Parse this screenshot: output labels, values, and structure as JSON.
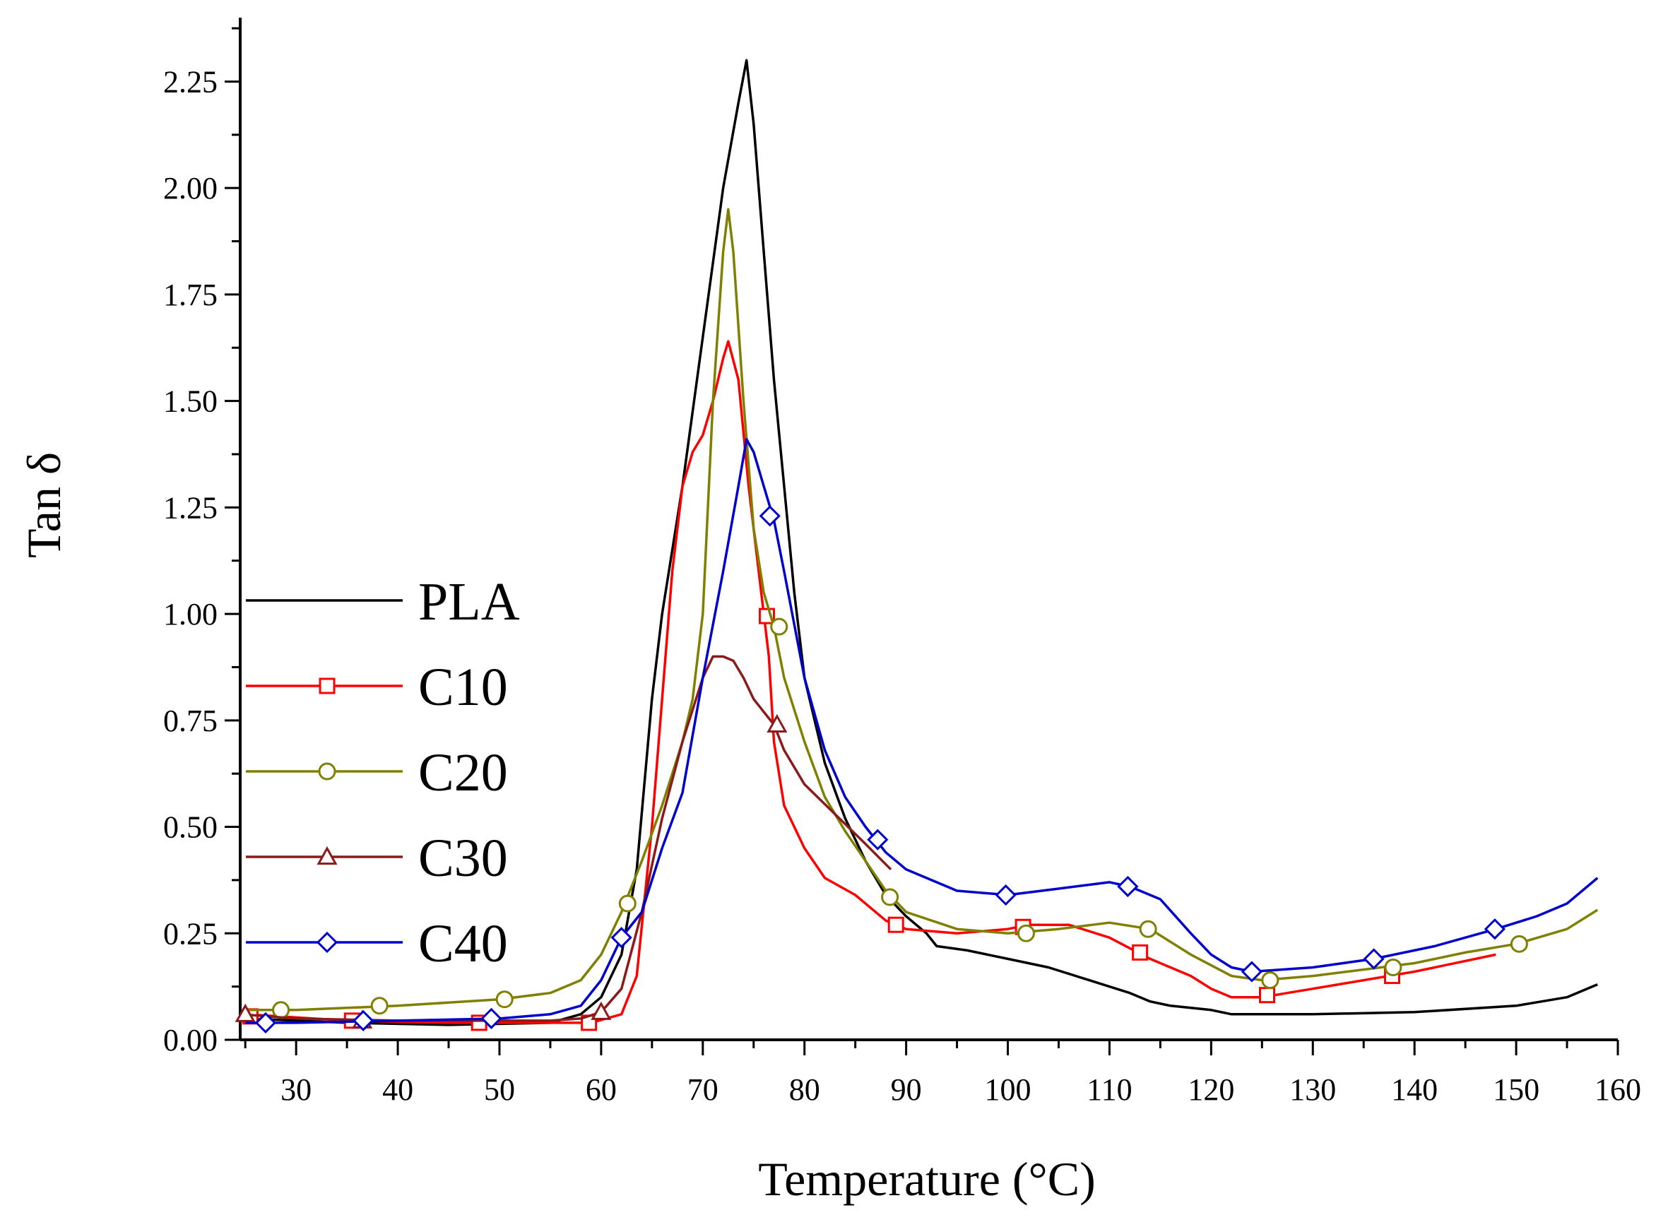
{
  "chart_data": {
    "type": "line",
    "title": "",
    "xlabel": "Temperature (°C)",
    "ylabel": "Tan δ",
    "xlim": [
      24.5,
      160
    ],
    "ylim": [
      0,
      2.4
    ],
    "xticks": [
      30,
      40,
      50,
      60,
      70,
      80,
      90,
      100,
      110,
      120,
      130,
      140,
      150,
      160
    ],
    "yticks": [
      0.0,
      0.25,
      0.5,
      0.75,
      1.0,
      1.25,
      1.5,
      1.75,
      2.0,
      2.25
    ],
    "xtick_labels": [
      "30",
      "40",
      "50",
      "60",
      "70",
      "80",
      "90",
      "100",
      "110",
      "120",
      "130",
      "140",
      "150",
      "160"
    ],
    "ytick_labels": [
      "0.00",
      "0.25",
      "0.50",
      "0.75",
      "1.00",
      "1.25",
      "1.50",
      "1.75",
      "2.00",
      "2.25"
    ],
    "grid": false,
    "legend_position": "left",
    "series": [
      {
        "name": "PLA",
        "color": "#000000",
        "marker": "none",
        "points": [
          [
            25,
            0.05
          ],
          [
            35,
            0.04
          ],
          [
            45,
            0.035
          ],
          [
            55,
            0.04
          ],
          [
            58,
            0.06
          ],
          [
            60,
            0.1
          ],
          [
            62,
            0.2
          ],
          [
            63.5,
            0.4
          ],
          [
            65,
            0.8
          ],
          [
            66,
            1.0
          ],
          [
            68,
            1.3
          ],
          [
            70,
            1.65
          ],
          [
            72,
            2.0
          ],
          [
            73.5,
            2.2
          ],
          [
            74.3,
            2.3
          ],
          [
            75,
            2.15
          ],
          [
            76,
            1.85
          ],
          [
            77,
            1.55
          ],
          [
            78,
            1.3
          ],
          [
            79,
            1.05
          ],
          [
            80,
            0.85
          ],
          [
            82,
            0.65
          ],
          [
            84,
            0.52
          ],
          [
            86,
            0.42
          ],
          [
            88,
            0.34
          ],
          [
            90,
            0.29
          ],
          [
            92,
            0.25
          ],
          [
            93,
            0.22
          ],
          [
            96,
            0.21
          ],
          [
            100,
            0.19
          ],
          [
            104,
            0.17
          ],
          [
            108,
            0.14
          ],
          [
            112,
            0.11
          ],
          [
            114,
            0.09
          ],
          [
            116,
            0.08
          ],
          [
            120,
            0.07
          ],
          [
            122,
            0.06
          ],
          [
            130,
            0.06
          ],
          [
            140,
            0.065
          ],
          [
            150,
            0.08
          ],
          [
            155,
            0.1
          ],
          [
            158,
            0.13
          ]
        ],
        "markers": []
      },
      {
        "name": "C10",
        "color": "#ff0000",
        "marker": "square",
        "points": [
          [
            25,
            0.06
          ],
          [
            35,
            0.045
          ],
          [
            45,
            0.04
          ],
          [
            55,
            0.04
          ],
          [
            59,
            0.04
          ],
          [
            62,
            0.06
          ],
          [
            63.5,
            0.15
          ],
          [
            65,
            0.5
          ],
          [
            66,
            0.8
          ],
          [
            67,
            1.1
          ],
          [
            68,
            1.3
          ],
          [
            69,
            1.38
          ],
          [
            70,
            1.42
          ],
          [
            71,
            1.5
          ],
          [
            72,
            1.6
          ],
          [
            72.5,
            1.64
          ],
          [
            73.5,
            1.55
          ],
          [
            74.5,
            1.3
          ],
          [
            75.5,
            1.1
          ],
          [
            76.5,
            0.9
          ],
          [
            77,
            0.7
          ],
          [
            78,
            0.55
          ],
          [
            80,
            0.45
          ],
          [
            82,
            0.38
          ],
          [
            85,
            0.34
          ],
          [
            88,
            0.28
          ],
          [
            90,
            0.26
          ],
          [
            95,
            0.25
          ],
          [
            100,
            0.26
          ],
          [
            102,
            0.27
          ],
          [
            106,
            0.27
          ],
          [
            110,
            0.24
          ],
          [
            114,
            0.19
          ],
          [
            118,
            0.15
          ],
          [
            120,
            0.12
          ],
          [
            122,
            0.1
          ],
          [
            125,
            0.1
          ],
          [
            130,
            0.12
          ],
          [
            140,
            0.16
          ],
          [
            148,
            0.2
          ]
        ],
        "markers": [
          [
            25.5,
            0.055
          ],
          [
            35.5,
            0.045
          ],
          [
            48,
            0.04
          ],
          [
            58.8,
            0.04
          ],
          [
            76.3,
            0.995
          ],
          [
            89,
            0.27
          ],
          [
            101.5,
            0.265
          ],
          [
            113,
            0.205
          ],
          [
            125.5,
            0.105
          ],
          [
            137.8,
            0.15
          ]
        ]
      },
      {
        "name": "C20",
        "color": "#808000",
        "marker": "circle",
        "points": [
          [
            25,
            0.07
          ],
          [
            30,
            0.07
          ],
          [
            40,
            0.08
          ],
          [
            50,
            0.095
          ],
          [
            55,
            0.11
          ],
          [
            58,
            0.14
          ],
          [
            60,
            0.2
          ],
          [
            62,
            0.3
          ],
          [
            64,
            0.42
          ],
          [
            66,
            0.55
          ],
          [
            68,
            0.7
          ],
          [
            69,
            0.8
          ],
          [
            70,
            1.0
          ],
          [
            71,
            1.5
          ],
          [
            72,
            1.85
          ],
          [
            72.5,
            1.95
          ],
          [
            73,
            1.85
          ],
          [
            74,
            1.5
          ],
          [
            75,
            1.2
          ],
          [
            76,
            1.05
          ],
          [
            77,
            0.97
          ],
          [
            78,
            0.85
          ],
          [
            80,
            0.7
          ],
          [
            82,
            0.57
          ],
          [
            84,
            0.49
          ],
          [
            86,
            0.42
          ],
          [
            88,
            0.35
          ],
          [
            90,
            0.3
          ],
          [
            95,
            0.26
          ],
          [
            100,
            0.25
          ],
          [
            105,
            0.26
          ],
          [
            110,
            0.275
          ],
          [
            114,
            0.26
          ],
          [
            118,
            0.2
          ],
          [
            122,
            0.15
          ],
          [
            125,
            0.14
          ],
          [
            130,
            0.15
          ],
          [
            140,
            0.18
          ],
          [
            145,
            0.205
          ],
          [
            150,
            0.225
          ],
          [
            155,
            0.26
          ],
          [
            158,
            0.305
          ]
        ],
        "markers": [
          [
            28.5,
            0.07
          ],
          [
            38.2,
            0.08
          ],
          [
            50.5,
            0.095
          ],
          [
            62.6,
            0.32
          ],
          [
            77.5,
            0.97
          ],
          [
            88.4,
            0.335
          ],
          [
            101.8,
            0.25
          ],
          [
            113.8,
            0.26
          ],
          [
            125.8,
            0.14
          ],
          [
            137.9,
            0.17
          ],
          [
            150.3,
            0.225
          ]
        ]
      },
      {
        "name": "C30",
        "color": "#8b1a1a",
        "marker": "triangle",
        "points": [
          [
            24.5,
            0.06
          ],
          [
            30,
            0.05
          ],
          [
            40,
            0.045
          ],
          [
            50,
            0.045
          ],
          [
            55,
            0.045
          ],
          [
            58,
            0.05
          ],
          [
            60,
            0.065
          ],
          [
            62,
            0.12
          ],
          [
            64,
            0.3
          ],
          [
            66,
            0.52
          ],
          [
            68,
            0.7
          ],
          [
            70,
            0.85
          ],
          [
            71,
            0.9
          ],
          [
            72,
            0.9
          ],
          [
            73,
            0.89
          ],
          [
            74,
            0.85
          ],
          [
            75,
            0.8
          ],
          [
            76,
            0.77
          ],
          [
            77,
            0.74
          ],
          [
            78,
            0.68
          ],
          [
            80,
            0.6
          ],
          [
            83,
            0.53
          ],
          [
            86,
            0.46
          ],
          [
            88.5,
            0.4
          ]
        ],
        "markers": [
          [
            25,
            0.06
          ],
          [
            36.5,
            0.045
          ],
          [
            60,
            0.065
          ],
          [
            77.3,
            0.74
          ]
        ]
      },
      {
        "name": "C40",
        "color": "#0000cd",
        "marker": "diamond",
        "points": [
          [
            25,
            0.04
          ],
          [
            30,
            0.04
          ],
          [
            40,
            0.045
          ],
          [
            50,
            0.05
          ],
          [
            55,
            0.06
          ],
          [
            58,
            0.08
          ],
          [
            60,
            0.14
          ],
          [
            62,
            0.24
          ],
          [
            64,
            0.3
          ],
          [
            66,
            0.45
          ],
          [
            68,
            0.58
          ],
          [
            70,
            0.85
          ],
          [
            72,
            1.1
          ],
          [
            73.5,
            1.3
          ],
          [
            74.3,
            1.41
          ],
          [
            75,
            1.38
          ],
          [
            76,
            1.3
          ],
          [
            77,
            1.22
          ],
          [
            78,
            1.1
          ],
          [
            80,
            0.85
          ],
          [
            82,
            0.68
          ],
          [
            84,
            0.57
          ],
          [
            86,
            0.5
          ],
          [
            88,
            0.44
          ],
          [
            90,
            0.4
          ],
          [
            95,
            0.35
          ],
          [
            100,
            0.34
          ],
          [
            105,
            0.355
          ],
          [
            110,
            0.37
          ],
          [
            112,
            0.36
          ],
          [
            115,
            0.33
          ],
          [
            118,
            0.25
          ],
          [
            120,
            0.2
          ],
          [
            122,
            0.17
          ],
          [
            124,
            0.16
          ],
          [
            130,
            0.17
          ],
          [
            136,
            0.19
          ],
          [
            142,
            0.22
          ],
          [
            148,
            0.26
          ],
          [
            152,
            0.29
          ],
          [
            155,
            0.32
          ],
          [
            158,
            0.38
          ]
        ],
        "markers": [
          [
            27,
            0.04
          ],
          [
            36.6,
            0.045
          ],
          [
            49.2,
            0.05
          ],
          [
            62,
            0.24
          ],
          [
            76.6,
            1.23
          ],
          [
            87.2,
            0.47
          ],
          [
            99.8,
            0.34
          ],
          [
            111.8,
            0.36
          ],
          [
            124,
            0.16
          ],
          [
            136,
            0.19
          ],
          [
            147.9,
            0.26
          ]
        ]
      }
    ]
  }
}
